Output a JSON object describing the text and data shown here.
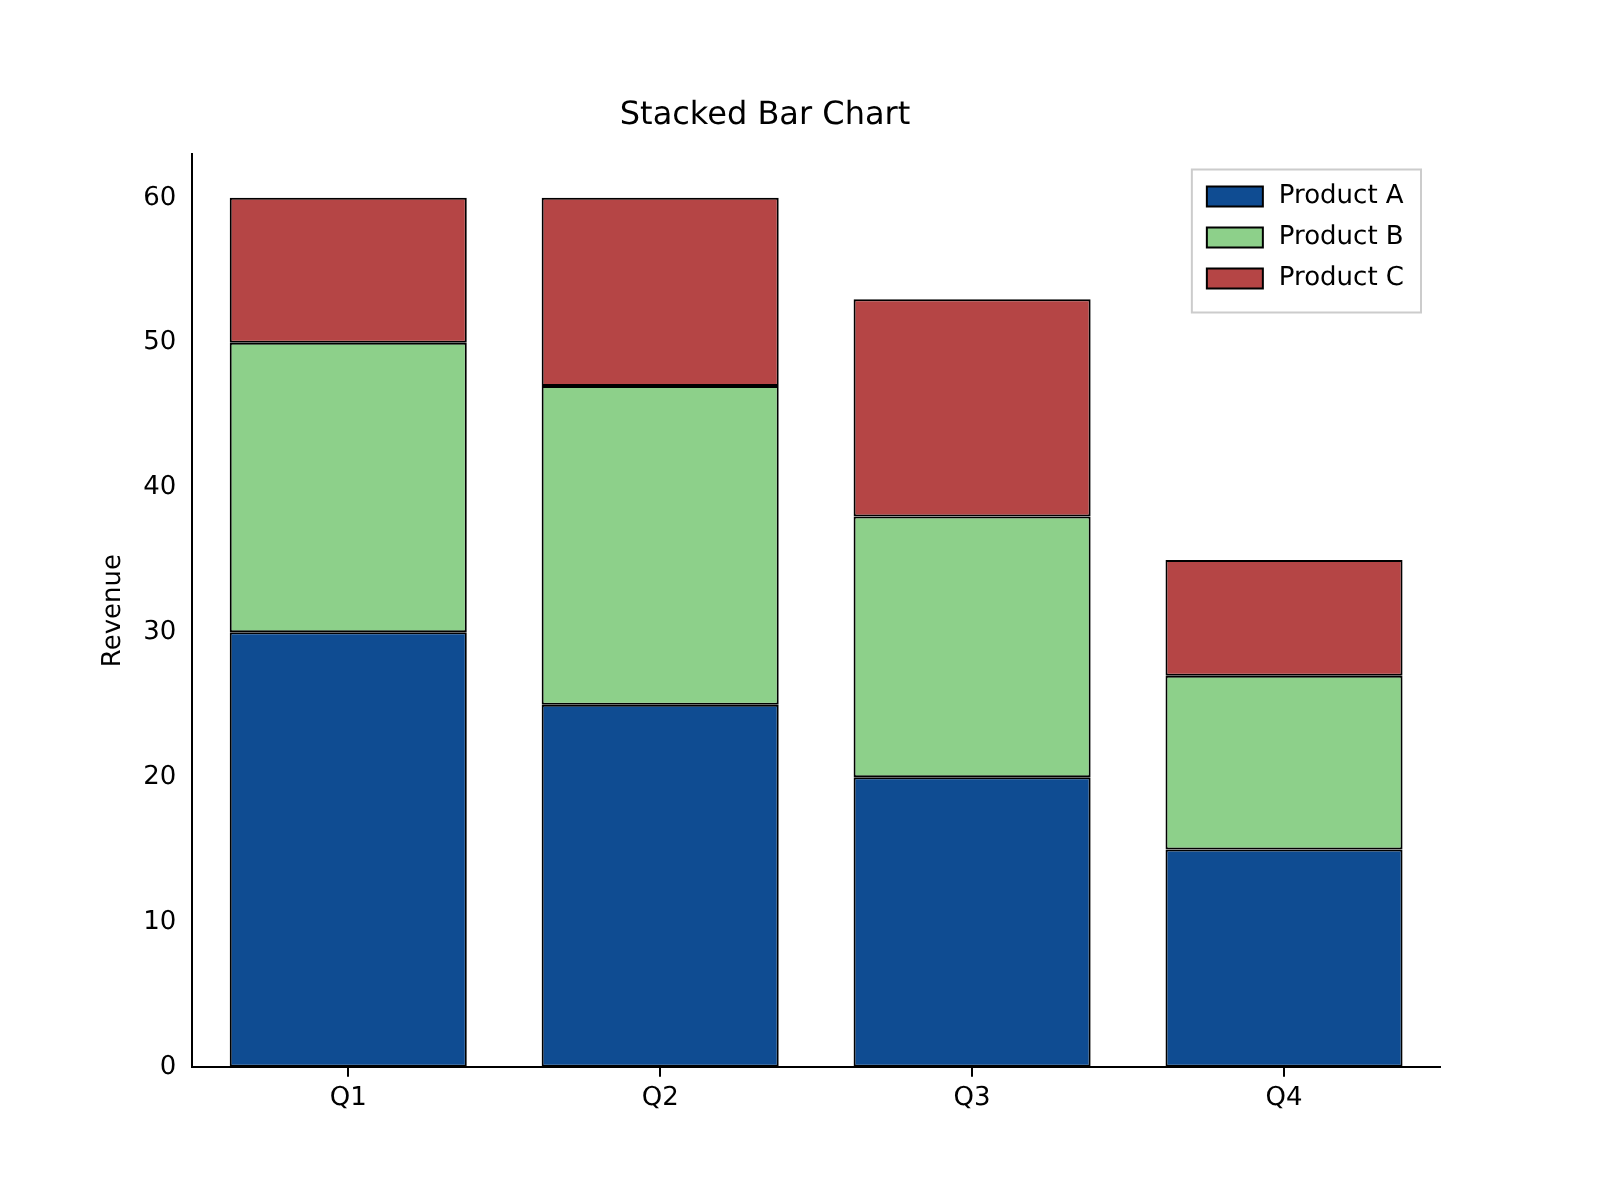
{
  "chart_data": {
    "type": "bar",
    "title": "Stacked Bar Chart",
    "ylabel": "Revenue",
    "categories": [
      "Q1",
      "Q2",
      "Q3",
      "Q4"
    ],
    "series": [
      {
        "name": "Product A",
        "color": "#0f4c92",
        "values": [
          30,
          25,
          20,
          15
        ]
      },
      {
        "name": "Product B",
        "color": "#8dd08a",
        "values": [
          20,
          22,
          18,
          12
        ]
      },
      {
        "name": "Product C",
        "color": "#b54545",
        "values": [
          10,
          13,
          15,
          8
        ]
      }
    ],
    "stacked": true,
    "ylim": [
      0,
      63
    ],
    "yticks": [
      0,
      10,
      20,
      30,
      40,
      50,
      60
    ],
    "grid": false,
    "legend": "top right"
  }
}
